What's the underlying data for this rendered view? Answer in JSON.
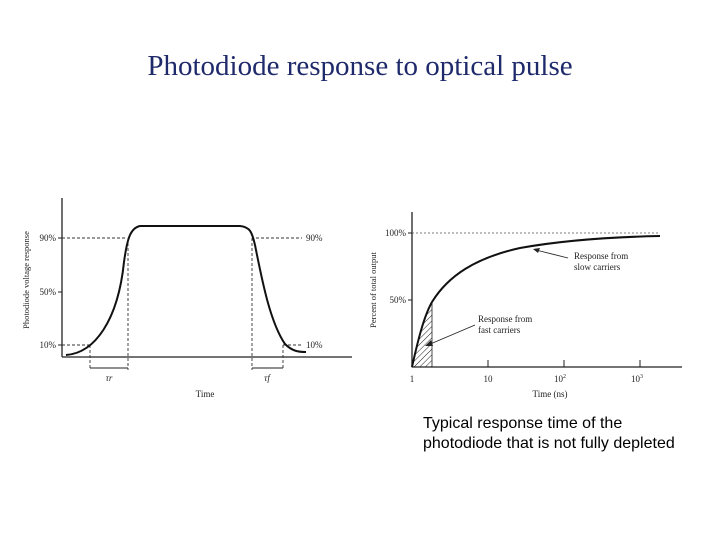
{
  "slide": {
    "title": "Photodiode response to optical pulse",
    "caption_line1": "Typical response time of the",
    "caption_line2": "photodiode that is not fully depleted"
  },
  "chart_data": [
    {
      "type": "line",
      "title": "",
      "xlabel": "Time",
      "ylabel": "Photodiode voltage response",
      "y_ticks": [
        "10%",
        "50%",
        "90%"
      ],
      "right_labels": [
        "90%",
        "10%"
      ],
      "annotations": {
        "rise_time": "τr",
        "fall_time": "τf"
      },
      "grid": false
    },
    {
      "type": "line",
      "title": "",
      "xlabel": "Time (ns)",
      "ylabel": "Percent of total output",
      "x_scale": "log",
      "x_ticks": [
        {
          "base": "1",
          "exp": ""
        },
        {
          "base": "10",
          "exp": ""
        },
        {
          "base": "10",
          "exp": "2"
        },
        {
          "base": "10",
          "exp": "3"
        }
      ],
      "y_ticks": [
        "50%",
        "100%"
      ],
      "annotations": {
        "slow_line1": "Response from",
        "slow_line2": "slow carriers",
        "fast_line1": "Response from",
        "fast_line2": "fast carriers"
      },
      "grid": false
    }
  ]
}
